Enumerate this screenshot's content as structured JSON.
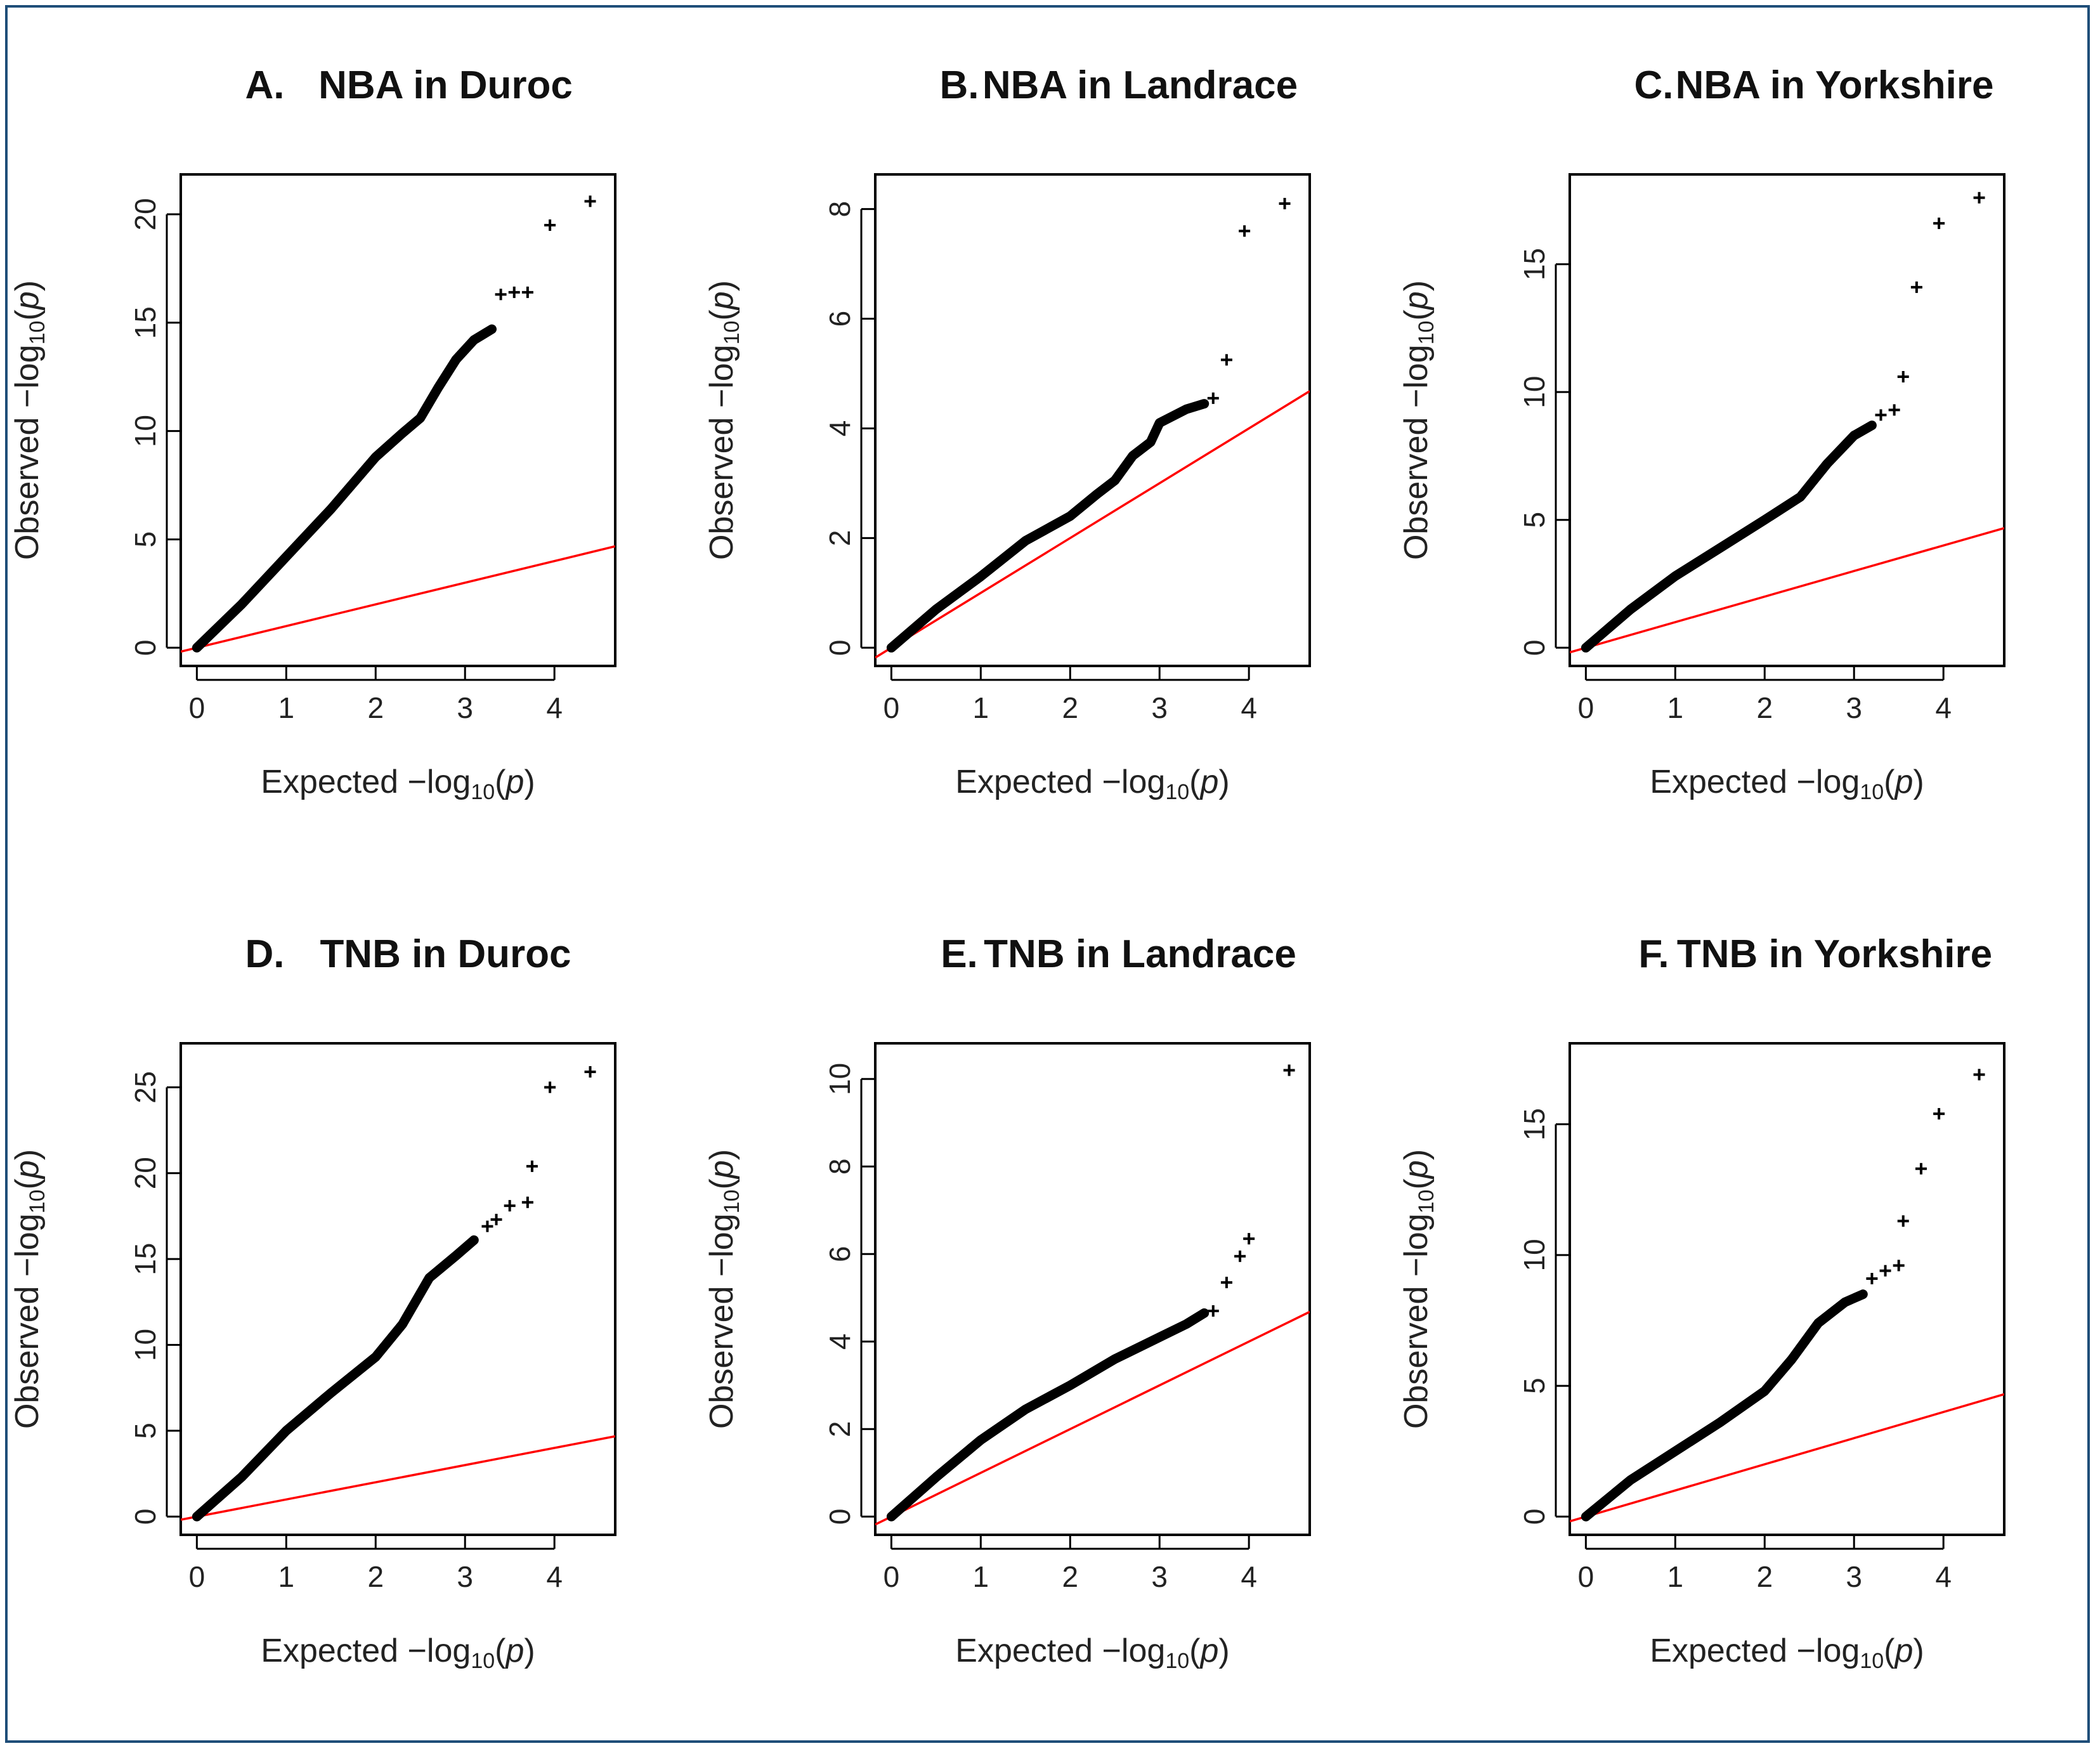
{
  "chart_data": [
    {
      "type": "scatter",
      "panel": "A.",
      "title": "NBA in Duroc",
      "xlabel": "Expected −log10(p)",
      "ylabel": "Observed −log10(p)",
      "xlim": [
        0,
        4.5
      ],
      "ylim": [
        0,
        21
      ],
      "xticks": [
        "0",
        "1",
        "2",
        "3",
        "4"
      ],
      "yticks": [
        "0",
        "5",
        "10",
        "15",
        "20"
      ],
      "reference_line": {
        "label": "y = x",
        "color": "#ff0000"
      },
      "curve": [
        [
          0,
          0
        ],
        [
          0.5,
          2
        ],
        [
          1,
          4.2
        ],
        [
          1.5,
          6.4
        ],
        [
          2,
          8.8
        ],
        [
          2.3,
          9.9
        ],
        [
          2.5,
          10.6
        ],
        [
          2.7,
          12
        ],
        [
          2.9,
          13.3
        ],
        [
          3.1,
          14.2
        ],
        [
          3.3,
          14.7
        ]
      ],
      "points": [
        [
          3.4,
          16.3
        ],
        [
          3.55,
          16.4
        ],
        [
          3.7,
          16.4
        ],
        [
          3.95,
          19.5
        ],
        [
          4.4,
          20.6
        ]
      ]
    },
    {
      "type": "scatter",
      "panel": "B.",
      "title": "NBA in Landrace",
      "xlabel": "Expected −log10(p)",
      "ylabel": "Observed −log10(p)",
      "xlim": [
        0,
        4.5
      ],
      "ylim": [
        0,
        8.3
      ],
      "xticks": [
        "0",
        "1",
        "2",
        "3",
        "4"
      ],
      "yticks": [
        "0",
        "2",
        "4",
        "6",
        "8"
      ],
      "reference_line": {
        "label": "y = x",
        "color": "#ff0000"
      },
      "curve": [
        [
          0,
          0
        ],
        [
          0.5,
          0.7
        ],
        [
          1,
          1.3
        ],
        [
          1.5,
          1.95
        ],
        [
          2,
          2.4
        ],
        [
          2.3,
          2.8
        ],
        [
          2.5,
          3.05
        ],
        [
          2.7,
          3.5
        ],
        [
          2.9,
          3.75
        ],
        [
          3.0,
          4.1
        ],
        [
          3.3,
          4.35
        ],
        [
          3.5,
          4.45
        ]
      ],
      "points": [
        [
          3.6,
          4.55
        ],
        [
          3.75,
          5.25
        ],
        [
          3.95,
          7.6
        ],
        [
          4.4,
          8.1
        ]
      ]
    },
    {
      "type": "scatter",
      "panel": "C.",
      "title": "NBA in Yorkshire",
      "xlabel": "Expected −log10(p)",
      "ylabel": "Observed −log10(p)",
      "xlim": [
        0,
        4.5
      ],
      "ylim": [
        0,
        17.8
      ],
      "xticks": [
        "0",
        "1",
        "2",
        "3",
        "4"
      ],
      "yticks": [
        "0",
        "5",
        "10",
        "15"
      ],
      "reference_line": {
        "label": "y = x",
        "color": "#ff0000"
      },
      "curve": [
        [
          0,
          0
        ],
        [
          0.5,
          1.5
        ],
        [
          1,
          2.8
        ],
        [
          1.5,
          3.9
        ],
        [
          2,
          5
        ],
        [
          2.4,
          5.9
        ],
        [
          2.7,
          7.2
        ],
        [
          3,
          8.3
        ],
        [
          3.2,
          8.7
        ]
      ],
      "points": [
        [
          3.3,
          9.1
        ],
        [
          3.45,
          9.3
        ],
        [
          3.55,
          10.6
        ],
        [
          3.7,
          14.1
        ],
        [
          3.95,
          16.6
        ],
        [
          4.4,
          17.6
        ]
      ]
    },
    {
      "type": "scatter",
      "panel": "D.",
      "title": "TNB in Duroc",
      "xlabel": "Expected −log10(p)",
      "ylabel": "Observed −log10(p)",
      "xlim": [
        0,
        4.5
      ],
      "ylim": [
        0,
        26.5
      ],
      "xticks": [
        "0",
        "1",
        "2",
        "3",
        "4"
      ],
      "yticks": [
        "0",
        "5",
        "10",
        "15",
        "20",
        "25"
      ],
      "reference_line": {
        "label": "y = x",
        "color": "#ff0000"
      },
      "curve": [
        [
          0,
          0
        ],
        [
          0.5,
          2.3
        ],
        [
          1,
          5
        ],
        [
          1.5,
          7.2
        ],
        [
          2,
          9.3
        ],
        [
          2.3,
          11.2
        ],
        [
          2.6,
          13.9
        ],
        [
          2.9,
          15.2
        ],
        [
          3.1,
          16.1
        ]
      ],
      "points": [
        [
          3.25,
          16.9
        ],
        [
          3.35,
          17.3
        ],
        [
          3.5,
          18.1
        ],
        [
          3.7,
          18.3
        ],
        [
          3.75,
          20.4
        ],
        [
          3.95,
          25
        ],
        [
          4.4,
          25.9
        ]
      ]
    },
    {
      "type": "scatter",
      "panel": "E.",
      "title": "TNB in Landrace",
      "xlabel": "Expected −log10(p)",
      "ylabel": "Observed −log10(p)",
      "xlim": [
        0,
        4.5
      ],
      "ylim": [
        0,
        10.4
      ],
      "xticks": [
        "0",
        "1",
        "2",
        "3",
        "4"
      ],
      "yticks": [
        "0",
        "2",
        "4",
        "6",
        "8",
        "10"
      ],
      "reference_line": {
        "label": "y = x",
        "color": "#ff0000"
      },
      "curve": [
        [
          0,
          0
        ],
        [
          0.5,
          0.9
        ],
        [
          1,
          1.75
        ],
        [
          1.5,
          2.45
        ],
        [
          2,
          3
        ],
        [
          2.5,
          3.6
        ],
        [
          3,
          4.1
        ],
        [
          3.3,
          4.4
        ],
        [
          3.5,
          4.65
        ]
      ],
      "points": [
        [
          3.6,
          4.7
        ],
        [
          3.75,
          5.35
        ],
        [
          3.9,
          5.95
        ],
        [
          4.0,
          6.35
        ],
        [
          4.45,
          10.2
        ]
      ]
    },
    {
      "type": "scatter",
      "panel": "F.",
      "title": "TNB in Yorkshire",
      "xlabel": "Expected −log10(p)",
      "ylabel": "Observed −log10(p)",
      "xlim": [
        0,
        4.5
      ],
      "ylim": [
        0,
        17.4
      ],
      "xticks": [
        "0",
        "1",
        "2",
        "3",
        "4"
      ],
      "yticks": [
        "0",
        "5",
        "10",
        "15"
      ],
      "reference_line": {
        "label": "y = x",
        "color": "#ff0000"
      },
      "curve": [
        [
          0,
          0
        ],
        [
          0.5,
          1.4
        ],
        [
          1,
          2.5
        ],
        [
          1.5,
          3.6
        ],
        [
          2,
          4.8
        ],
        [
          2.3,
          6
        ],
        [
          2.6,
          7.4
        ],
        [
          2.9,
          8.2
        ],
        [
          3.1,
          8.5
        ]
      ],
      "points": [
        [
          3.2,
          9.1
        ],
        [
          3.35,
          9.4
        ],
        [
          3.5,
          9.6
        ],
        [
          3.55,
          11.3
        ],
        [
          3.75,
          13.3
        ],
        [
          3.95,
          15.4
        ],
        [
          4.4,
          16.9
        ]
      ]
    }
  ]
}
